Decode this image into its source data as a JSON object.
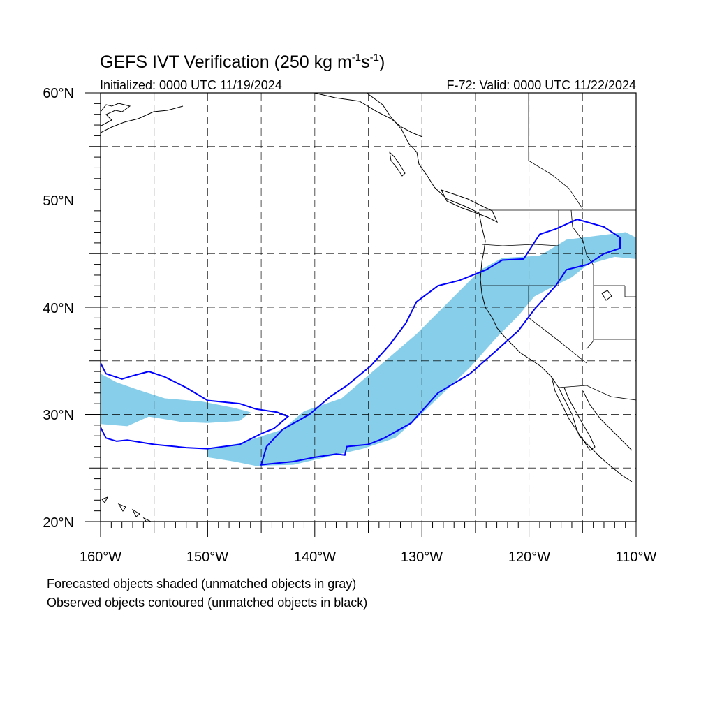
{
  "title": {
    "main": "GEFS IVT Verification (250 kg m",
    "exp1": "-1",
    "mid": "s",
    "exp2": "-1",
    "close": ")"
  },
  "subtitle_left": "Initialized: 0000 UTC 11/19/2024",
  "subtitle_right": "F-72: Valid: 0000 UTC 11/22/2024",
  "lat_labels": [
    "60°N",
    "50°N",
    "40°N",
    "30°N",
    "20°N"
  ],
  "lon_labels": [
    "160°W",
    "150°W",
    "140°W",
    "130°W",
    "120°W",
    "110°W"
  ],
  "notes": [
    "Forecasted objects shaded (unmatched objects in gray)",
    "Observed objects contoured (unmatched objects in black)"
  ],
  "colors": {
    "forecast_fill": "#87ceeb",
    "observed_contour": "#0000ff",
    "coastline": "#000000",
    "grid": "#000000"
  },
  "map_extent": {
    "lon": [
      -160,
      -110
    ],
    "lat": [
      20,
      60
    ],
    "grid_spacing_deg": 5
  },
  "forecast_objects": [
    {
      "name": "main-atmospheric-river",
      "polygon": [
        [
          -145.5,
          25.2
        ],
        [
          -147.5,
          25.6
        ],
        [
          -150,
          26
        ],
        [
          -150,
          26.8
        ],
        [
          -147,
          27.3
        ],
        [
          -143,
          28.6
        ],
        [
          -141,
          30.3
        ],
        [
          -137.5,
          31.5
        ],
        [
          -134,
          34.5
        ],
        [
          -130.5,
          37.5
        ],
        [
          -127,
          41
        ],
        [
          -124.5,
          43.5
        ],
        [
          -122.5,
          44.6
        ],
        [
          -119,
          44.8
        ],
        [
          -116.5,
          46.3
        ],
        [
          -111,
          47
        ],
        [
          -110,
          46.5
        ],
        [
          -110,
          44.5
        ],
        [
          -112,
          44.7
        ],
        [
          -114.5,
          44
        ],
        [
          -116,
          42.8
        ],
        [
          -118,
          41.8
        ],
        [
          -119.5,
          41
        ],
        [
          -121,
          39.2
        ],
        [
          -123,
          37.2
        ],
        [
          -125.5,
          34.4
        ],
        [
          -128,
          32
        ],
        [
          -130.5,
          29.6
        ],
        [
          -132.5,
          27.8
        ],
        [
          -135.5,
          26.8
        ],
        [
          -139,
          26
        ],
        [
          -142,
          25.3
        ],
        [
          -145.5,
          25.2
        ]
      ]
    },
    {
      "name": "western-plume",
      "polygon": [
        [
          -160,
          33.8
        ],
        [
          -158.5,
          33
        ],
        [
          -156.5,
          32.3
        ],
        [
          -154,
          31.5
        ],
        [
          -150.5,
          31.2
        ],
        [
          -147.5,
          30.6
        ],
        [
          -146,
          30.2
        ],
        [
          -147,
          29.4
        ],
        [
          -150,
          29.2
        ],
        [
          -152.5,
          29.3
        ],
        [
          -155.5,
          29.8
        ],
        [
          -157.5,
          28.9
        ],
        [
          -160,
          29.1
        ]
      ]
    }
  ],
  "observed_objects": [
    {
      "name": "observed-main-river",
      "polygon": [
        [
          -145,
          25.3
        ],
        [
          -142,
          25.6
        ],
        [
          -140,
          26
        ],
        [
          -138,
          26.3
        ],
        [
          -137.2,
          26.2
        ],
        [
          -137,
          27
        ],
        [
          -135,
          27.2
        ],
        [
          -133.5,
          27.8
        ],
        [
          -131,
          29.2
        ],
        [
          -128.5,
          32
        ],
        [
          -125.5,
          33.8
        ],
        [
          -123,
          36
        ],
        [
          -121,
          37.8
        ],
        [
          -119.5,
          39.8
        ],
        [
          -117.5,
          42
        ],
        [
          -116.5,
          43.5
        ],
        [
          -114.5,
          44
        ],
        [
          -113,
          45
        ],
        [
          -111.5,
          45.5
        ],
        [
          -111.5,
          46.5
        ],
        [
          -113,
          47.5
        ],
        [
          -115.5,
          48.2
        ],
        [
          -117.5,
          47.3
        ],
        [
          -119,
          46.8
        ],
        [
          -120.5,
          44.5
        ],
        [
          -122.5,
          44.4
        ],
        [
          -124,
          43.5
        ],
        [
          -126.5,
          42.5
        ],
        [
          -128.5,
          42
        ],
        [
          -130.5,
          40.5
        ],
        [
          -131.5,
          38.5
        ],
        [
          -133,
          36.5
        ],
        [
          -134.8,
          34.5
        ],
        [
          -137,
          32.7
        ],
        [
          -138.5,
          31.7
        ],
        [
          -140.5,
          30
        ],
        [
          -143,
          28.6
        ],
        [
          -144.5,
          27
        ],
        [
          -145,
          25.3
        ]
      ]
    },
    {
      "name": "observed-western-plume",
      "polygon": [
        [
          -160,
          34.8
        ],
        [
          -159.5,
          33.8
        ],
        [
          -158,
          33.3
        ],
        [
          -157,
          33.6
        ],
        [
          -155.5,
          34
        ],
        [
          -154,
          33.5
        ],
        [
          -152,
          32.5
        ],
        [
          -150,
          31.3
        ],
        [
          -147,
          31
        ],
        [
          -145.5,
          30.5
        ],
        [
          -143.5,
          30.2
        ],
        [
          -142.5,
          29.8
        ],
        [
          -143.8,
          28.7
        ],
        [
          -145,
          28.2
        ],
        [
          -147,
          27.2
        ],
        [
          -148.5,
          27
        ],
        [
          -150,
          26.8
        ],
        [
          -152,
          26.9
        ],
        [
          -155,
          27.2
        ],
        [
          -157.5,
          27.6
        ],
        [
          -158.5,
          27.5
        ],
        [
          -159.5,
          27.8
        ],
        [
          -160,
          28.8
        ]
      ]
    }
  ]
}
